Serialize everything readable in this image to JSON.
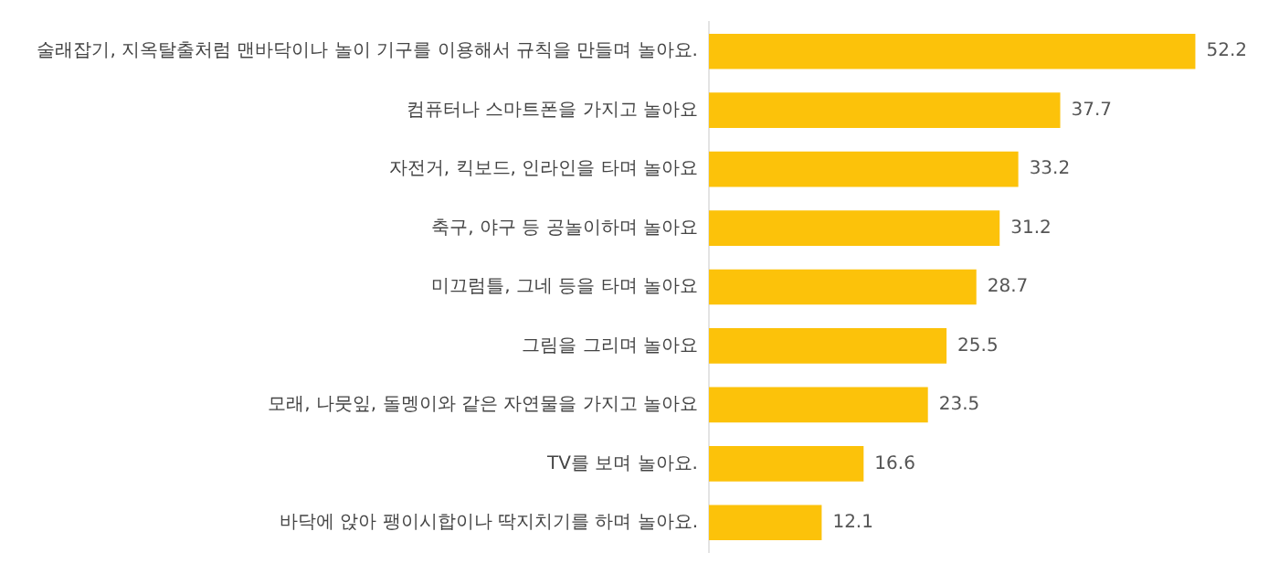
{
  "chart_data": {
    "type": "bar",
    "orientation": "horizontal",
    "categories": [
      "술래잡기, 지옥탈출처럼 맨바닥이나 놀이 기구를 이용해서 규칙을 만들며 놀아요.",
      "컴퓨터나 스마트폰을 가지고 놀아요",
      "자전거, 킥보드, 인라인을 타며 놀아요",
      "축구, 야구 등 공놀이하며 놀아요",
      "미끄럼틀, 그네 등을 타며 놀아요",
      "그림을 그리며 놀아요",
      "모래, 나뭇잎, 돌멩이와 같은 자연물을 가지고 놀아요",
      "TV를 보며 놀아요.",
      "바닥에 앉아 팽이시합이나 딱지치기를 하며 놀아요."
    ],
    "values": [
      52.2,
      37.7,
      33.2,
      31.2,
      28.7,
      25.5,
      23.5,
      16.6,
      12.1
    ],
    "color": "#fcc20a",
    "data_labels": true,
    "grid": false,
    "legend": false,
    "tick_labels": "y"
  }
}
